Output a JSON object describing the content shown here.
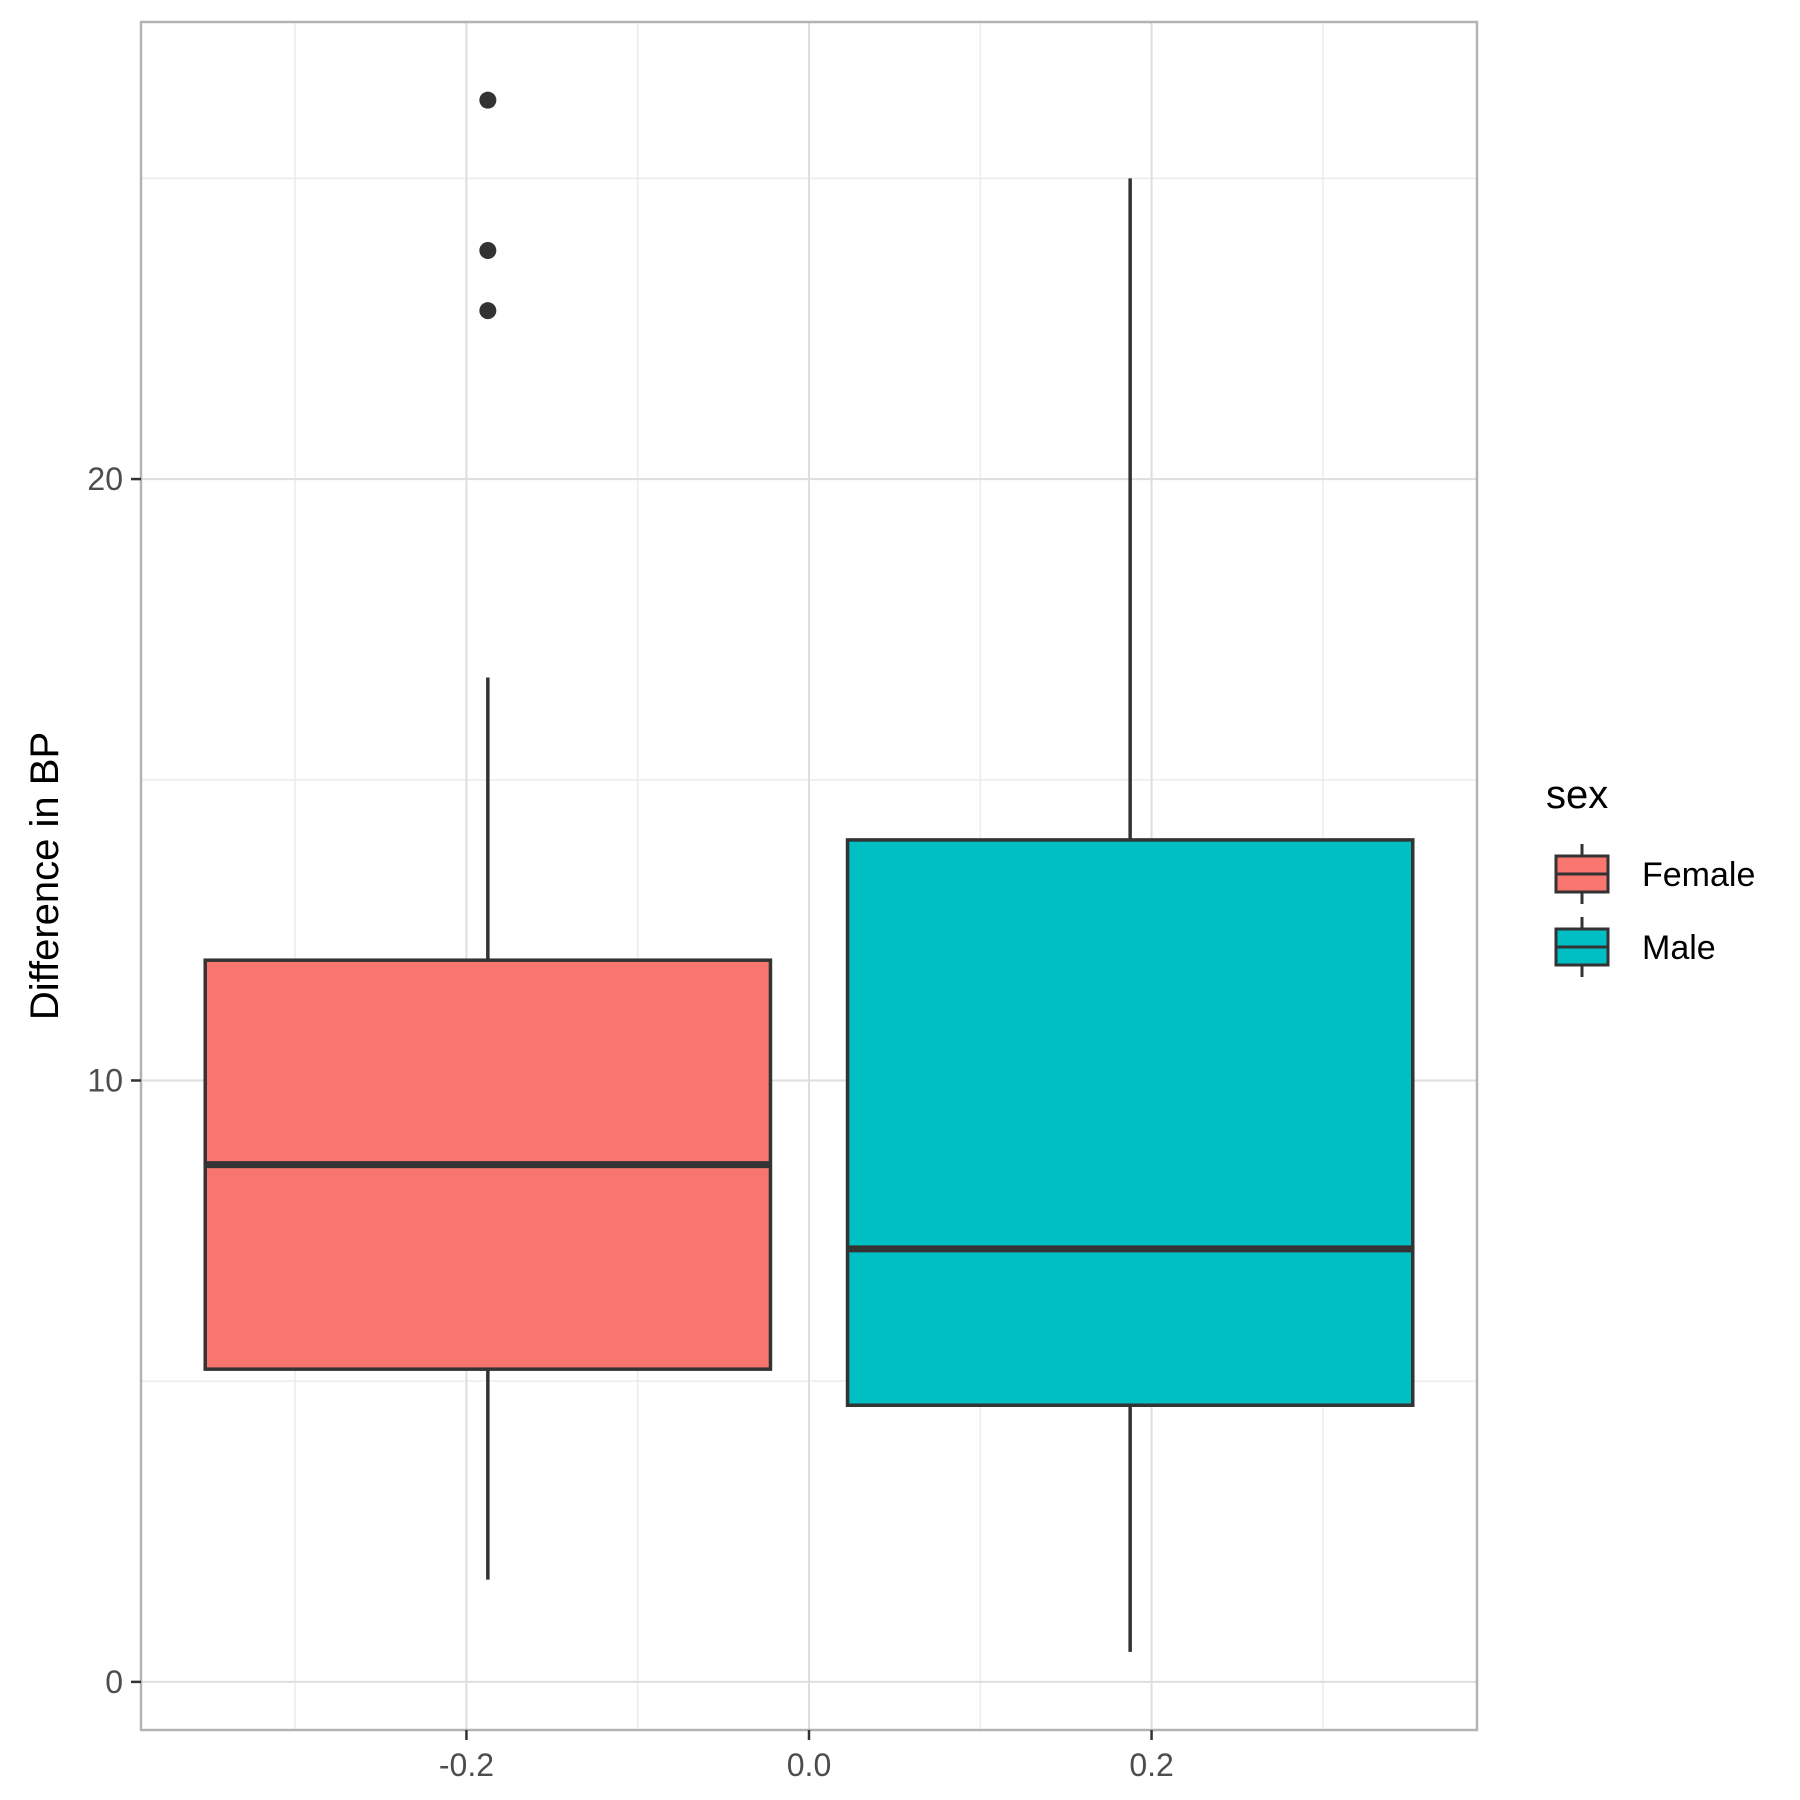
{
  "chart_data": {
    "type": "boxplot",
    "title": "",
    "xlabel": "",
    "ylabel": "Difference in BP",
    "xlim": [
      -0.39,
      0.39
    ],
    "ylim": [
      -0.8,
      27.6
    ],
    "x_ticks": [
      -0.2,
      0.0,
      0.2
    ],
    "x_tick_labels": [
      "-0.2",
      "0.0",
      "0.2"
    ],
    "y_ticks": [
      0,
      10,
      20
    ],
    "y_tick_labels": [
      "0",
      "10",
      "20"
    ],
    "grid": true,
    "legend": {
      "title": "sex",
      "position": "right"
    },
    "series": [
      {
        "name": "Female",
        "color": "#F8766D",
        "x_center": -0.1875,
        "x_left": -0.3525,
        "x_right": -0.0225,
        "whisker_low": 1.7,
        "q1": 5.2,
        "median": 8.6,
        "q3": 12.0,
        "whisker_high": 16.7,
        "outliers": [
          22.8,
          23.8,
          26.3
        ]
      },
      {
        "name": "Male",
        "color": "#00BFC4",
        "x_center": 0.1875,
        "x_left": 0.0225,
        "x_right": 0.3525,
        "whisker_low": 0.5,
        "q1": 4.6,
        "median": 7.2,
        "q3": 14.0,
        "whisker_high": 25.0,
        "outliers": []
      }
    ]
  }
}
